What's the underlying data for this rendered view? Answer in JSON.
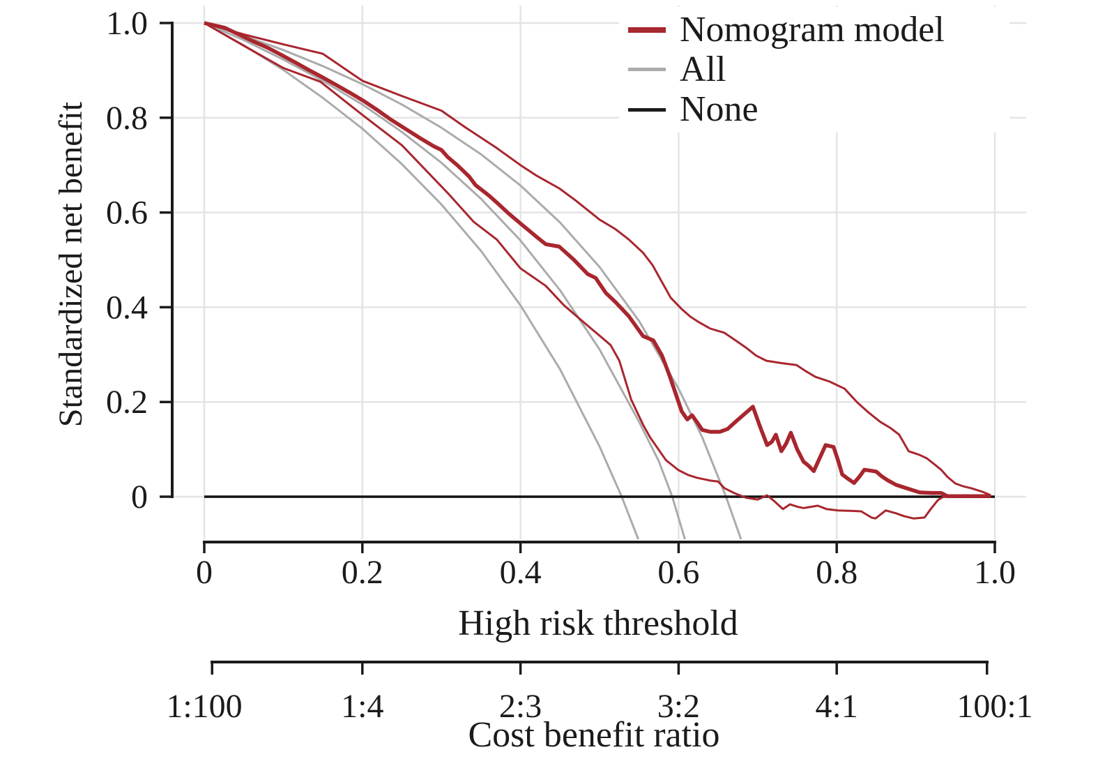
{
  "figure": {
    "background": "#ffffff",
    "ink_color": "#1b1b1b",
    "grid_color": "#e4e4e4",
    "none_line_color": "#111111",
    "legend": {
      "position": "top-right",
      "items": [
        {
          "label": "Nomogram model",
          "color": "#a8262e",
          "swatch_thickness": 8
        },
        {
          "label": "All",
          "color": "#ababab",
          "swatch_thickness": 5
        },
        {
          "label": "None",
          "color": "#1b1b1b",
          "swatch_thickness": 5
        }
      ]
    },
    "y_axis": {
      "title": "Standardized net benefit",
      "tick_labels": [
        "1.0",
        "0.8",
        "0.6",
        "0.4",
        "0.2",
        "0"
      ],
      "tick_values": [
        1.0,
        0.8,
        0.6,
        0.4,
        0.2,
        0
      ]
    },
    "x_axis": {
      "title": "High risk threshold",
      "tick_labels": [
        "0",
        "0.2",
        "0.4",
        "0.6",
        "0.8",
        "1.0"
      ],
      "tick_values": [
        0,
        0.2,
        0.4,
        0.6,
        0.8,
        1.0
      ]
    },
    "cost_benefit_axis": {
      "title": "Cost benefit ratio",
      "tick_labels": [
        "1:100",
        "1:4",
        "2:3",
        "3:2",
        "4:1",
        "100:1"
      ],
      "tick_values": [
        0.0099,
        0.2,
        0.4,
        0.6,
        0.8,
        0.9901
      ]
    }
  },
  "chart_data": {
    "type": "line",
    "title": "",
    "xlabel": "High risk threshold",
    "ylabel": "Standardized net benefit",
    "xlim": [
      0,
      1
    ],
    "ylim": [
      -0.09,
      1.0
    ],
    "grid": true,
    "legend_position": "top-right",
    "secondary_x_axis": {
      "label": "Cost benefit ratio",
      "tick_labels": [
        "1:100",
        "1:4",
        "2:3",
        "3:2",
        "4:1",
        "100:1"
      ],
      "tick_positions": [
        0.0099,
        0.2,
        0.4,
        0.6,
        0.8,
        0.9901
      ]
    },
    "series": [
      {
        "name": "All lower CI",
        "color": "#ababab",
        "width": 3,
        "points": [
          [
            0,
            1.0
          ],
          [
            0.05,
            0.953
          ],
          [
            0.1,
            0.901
          ],
          [
            0.15,
            0.842
          ],
          [
            0.2,
            0.777
          ],
          [
            0.25,
            0.702
          ],
          [
            0.3,
            0.617
          ],
          [
            0.35,
            0.519
          ],
          [
            0.4,
            0.404
          ],
          [
            0.45,
            0.269
          ],
          [
            0.5,
            0.106
          ],
          [
            0.528,
            0.0
          ],
          [
            0.549,
            -0.09
          ]
        ]
      },
      {
        "name": "All",
        "color": "#ababab",
        "width": 3,
        "points": [
          [
            0,
            1.0
          ],
          [
            0.05,
            0.964
          ],
          [
            0.1,
            0.923
          ],
          [
            0.15,
            0.878
          ],
          [
            0.2,
            0.828
          ],
          [
            0.25,
            0.77
          ],
          [
            0.3,
            0.705
          ],
          [
            0.35,
            0.629
          ],
          [
            0.4,
            0.541
          ],
          [
            0.45,
            0.436
          ],
          [
            0.5,
            0.311
          ],
          [
            0.55,
            0.158
          ],
          [
            0.575,
            0.075
          ],
          [
            0.592,
            0.0
          ],
          [
            0.608,
            -0.09
          ]
        ]
      },
      {
        "name": "All upper CI",
        "color": "#ababab",
        "width": 3,
        "points": [
          [
            0,
            1.0
          ],
          [
            0.05,
            0.973
          ],
          [
            0.1,
            0.943
          ],
          [
            0.15,
            0.909
          ],
          [
            0.2,
            0.871
          ],
          [
            0.25,
            0.828
          ],
          [
            0.3,
            0.779
          ],
          [
            0.35,
            0.723
          ],
          [
            0.4,
            0.657
          ],
          [
            0.45,
            0.579
          ],
          [
            0.5,
            0.485
          ],
          [
            0.55,
            0.371
          ],
          [
            0.6,
            0.228
          ],
          [
            0.63,
            0.125
          ],
          [
            0.66,
            0.0
          ],
          [
            0.679,
            -0.09
          ]
        ]
      },
      {
        "name": "None",
        "color": "#111111",
        "width": 3.5,
        "points": [
          [
            0,
            0
          ],
          [
            1,
            0
          ]
        ]
      },
      {
        "name": "Nomogram model lower CI",
        "color": "#a8262e",
        "width": 3,
        "points": [
          [
            0,
            1.0
          ],
          [
            0.05,
            0.952
          ],
          [
            0.1,
            0.905
          ],
          [
            0.147,
            0.876
          ],
          [
            0.2,
            0.806
          ],
          [
            0.25,
            0.742
          ],
          [
            0.3,
            0.655
          ],
          [
            0.308,
            0.641
          ],
          [
            0.341,
            0.58
          ],
          [
            0.37,
            0.543
          ],
          [
            0.4,
            0.482
          ],
          [
            0.432,
            0.445
          ],
          [
            0.455,
            0.404
          ],
          [
            0.485,
            0.361
          ],
          [
            0.5,
            0.34
          ],
          [
            0.514,
            0.32
          ],
          [
            0.525,
            0.287
          ],
          [
            0.54,
            0.205
          ],
          [
            0.555,
            0.152
          ],
          [
            0.564,
            0.125
          ],
          [
            0.584,
            0.077
          ],
          [
            0.6,
            0.056
          ],
          [
            0.612,
            0.046
          ],
          [
            0.623,
            0.04
          ],
          [
            0.64,
            0.034
          ],
          [
            0.65,
            0.032
          ],
          [
            0.658,
            0.018
          ],
          [
            0.67,
            0.008
          ],
          [
            0.685,
            -0.002
          ],
          [
            0.7,
            -0.006
          ],
          [
            0.708,
            0.0
          ],
          [
            0.712,
            0.003
          ],
          [
            0.72,
            -0.008
          ],
          [
            0.732,
            -0.026
          ],
          [
            0.741,
            -0.016
          ],
          [
            0.75,
            -0.021
          ],
          [
            0.758,
            -0.024
          ],
          [
            0.776,
            -0.019
          ],
          [
            0.787,
            -0.026
          ],
          [
            0.802,
            -0.029
          ],
          [
            0.82,
            -0.03
          ],
          [
            0.831,
            -0.031
          ],
          [
            0.844,
            -0.044
          ],
          [
            0.849,
            -0.046
          ],
          [
            0.862,
            -0.029
          ],
          [
            0.875,
            -0.035
          ],
          [
            0.885,
            -0.041
          ],
          [
            0.897,
            -0.046
          ],
          [
            0.911,
            -0.044
          ],
          [
            0.919,
            -0.026
          ],
          [
            0.928,
            -0.007
          ],
          [
            0.935,
            0.0
          ],
          [
            0.995,
            0.0
          ]
        ]
      },
      {
        "name": "Nomogram model upper CI",
        "color": "#a8262e",
        "width": 3,
        "points": [
          [
            0,
            1.0
          ],
          [
            0.05,
            0.976
          ],
          [
            0.1,
            0.955
          ],
          [
            0.15,
            0.935
          ],
          [
            0.2,
            0.878
          ],
          [
            0.25,
            0.846
          ],
          [
            0.3,
            0.815
          ],
          [
            0.33,
            0.78
          ],
          [
            0.35,
            0.758
          ],
          [
            0.37,
            0.736
          ],
          [
            0.4,
            0.7
          ],
          [
            0.42,
            0.678
          ],
          [
            0.449,
            0.651
          ],
          [
            0.47,
            0.625
          ],
          [
            0.5,
            0.585
          ],
          [
            0.52,
            0.565
          ],
          [
            0.537,
            0.543
          ],
          [
            0.555,
            0.515
          ],
          [
            0.567,
            0.489
          ],
          [
            0.58,
            0.45
          ],
          [
            0.59,
            0.42
          ],
          [
            0.604,
            0.396
          ],
          [
            0.615,
            0.38
          ],
          [
            0.626,
            0.368
          ],
          [
            0.64,
            0.355
          ],
          [
            0.658,
            0.346
          ],
          [
            0.672,
            0.33
          ],
          [
            0.685,
            0.315
          ],
          [
            0.698,
            0.298
          ],
          [
            0.711,
            0.287
          ],
          [
            0.73,
            0.282
          ],
          [
            0.749,
            0.278
          ],
          [
            0.76,
            0.266
          ],
          [
            0.773,
            0.253
          ],
          [
            0.791,
            0.243
          ],
          [
            0.81,
            0.228
          ],
          [
            0.826,
            0.199
          ],
          [
            0.84,
            0.178
          ],
          [
            0.855,
            0.158
          ],
          [
            0.868,
            0.145
          ],
          [
            0.879,
            0.131
          ],
          [
            0.891,
            0.096
          ],
          [
            0.905,
            0.088
          ],
          [
            0.914,
            0.081
          ],
          [
            0.923,
            0.069
          ],
          [
            0.932,
            0.057
          ],
          [
            0.94,
            0.042
          ],
          [
            0.95,
            0.028
          ],
          [
            0.96,
            0.022
          ],
          [
            0.97,
            0.018
          ],
          [
            0.985,
            0.01
          ],
          [
            0.995,
            0.003
          ]
        ]
      },
      {
        "name": "Nomogram model",
        "color": "#a8262e",
        "width": 5.5,
        "points": [
          [
            0,
            1.0
          ],
          [
            0.026,
            0.99
          ],
          [
            0.061,
            0.962
          ],
          [
            0.08,
            0.948
          ],
          [
            0.096,
            0.934
          ],
          [
            0.115,
            0.917
          ],
          [
            0.132,
            0.901
          ],
          [
            0.15,
            0.885
          ],
          [
            0.167,
            0.869
          ],
          [
            0.185,
            0.852
          ],
          [
            0.202,
            0.835
          ],
          [
            0.22,
            0.815
          ],
          [
            0.237,
            0.795
          ],
          [
            0.255,
            0.776
          ],
          [
            0.273,
            0.757
          ],
          [
            0.29,
            0.74
          ],
          [
            0.3,
            0.732
          ],
          [
            0.308,
            0.717
          ],
          [
            0.32,
            0.7
          ],
          [
            0.335,
            0.676
          ],
          [
            0.343,
            0.658
          ],
          [
            0.36,
            0.636
          ],
          [
            0.37,
            0.621
          ],
          [
            0.385,
            0.598
          ],
          [
            0.402,
            0.574
          ],
          [
            0.42,
            0.549
          ],
          [
            0.432,
            0.533
          ],
          [
            0.449,
            0.528
          ],
          [
            0.467,
            0.501
          ],
          [
            0.485,
            0.47
          ],
          [
            0.495,
            0.462
          ],
          [
            0.508,
            0.43
          ],
          [
            0.52,
            0.411
          ],
          [
            0.537,
            0.381
          ],
          [
            0.555,
            0.339
          ],
          [
            0.568,
            0.33
          ],
          [
            0.579,
            0.298
          ],
          [
            0.588,
            0.258
          ],
          [
            0.597,
            0.214
          ],
          [
            0.604,
            0.18
          ],
          [
            0.611,
            0.163
          ],
          [
            0.617,
            0.172
          ],
          [
            0.623,
            0.158
          ],
          [
            0.63,
            0.141
          ],
          [
            0.64,
            0.137
          ],
          [
            0.652,
            0.137
          ],
          [
            0.662,
            0.143
          ],
          [
            0.672,
            0.158
          ],
          [
            0.685,
            0.177
          ],
          [
            0.694,
            0.19
          ],
          [
            0.703,
            0.148
          ],
          [
            0.712,
            0.109
          ],
          [
            0.718,
            0.116
          ],
          [
            0.723,
            0.131
          ],
          [
            0.73,
            0.096
          ],
          [
            0.736,
            0.112
          ],
          [
            0.742,
            0.135
          ],
          [
            0.75,
            0.1
          ],
          [
            0.758,
            0.074
          ],
          [
            0.764,
            0.066
          ],
          [
            0.771,
            0.054
          ],
          [
            0.778,
            0.08
          ],
          [
            0.786,
            0.109
          ],
          [
            0.796,
            0.105
          ],
          [
            0.802,
            0.075
          ],
          [
            0.807,
            0.047
          ],
          [
            0.815,
            0.037
          ],
          [
            0.822,
            0.029
          ],
          [
            0.829,
            0.043
          ],
          [
            0.835,
            0.057
          ],
          [
            0.843,
            0.055
          ],
          [
            0.85,
            0.053
          ],
          [
            0.857,
            0.043
          ],
          [
            0.864,
            0.035
          ],
          [
            0.875,
            0.025
          ],
          [
            0.888,
            0.018
          ],
          [
            0.905,
            0.009
          ],
          [
            0.92,
            0.008
          ],
          [
            0.932,
            0.008
          ],
          [
            0.94,
            0.001
          ],
          [
            0.96,
            0.001
          ],
          [
            0.995,
            0.001
          ]
        ]
      }
    ]
  }
}
